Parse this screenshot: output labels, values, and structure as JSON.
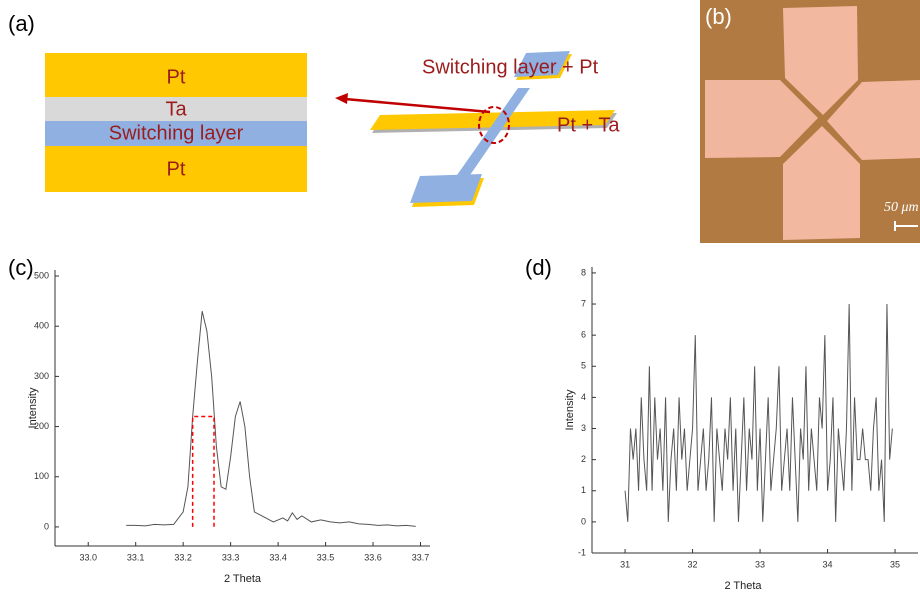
{
  "panel_labels": [
    "(a)",
    "(b)",
    "(c)",
    "(d)"
  ],
  "stack": {
    "layers": [
      "Pt",
      "Ta",
      "Switching layer",
      "Pt"
    ]
  },
  "device": {
    "labels": [
      "Switching layer + Pt",
      "Pt + Ta"
    ]
  },
  "micrograph": {
    "scale_label": "50 μm"
  },
  "chart_data": [
    {
      "type": "line",
      "xlabel": "2 Theta",
      "ylabel": "Intensity",
      "color": "#555555",
      "x": [
        33.08,
        33.1,
        33.12,
        33.14,
        33.16,
        33.18,
        33.2,
        33.21,
        33.22,
        33.23,
        33.24,
        33.25,
        33.26,
        33.27,
        33.28,
        33.29,
        33.3,
        33.31,
        33.32,
        33.33,
        33.34,
        33.35,
        33.37,
        33.39,
        33.41,
        33.42,
        33.43,
        33.44,
        33.45,
        33.47,
        33.49,
        33.51,
        33.53,
        33.55,
        33.57,
        33.59,
        33.61,
        33.63,
        33.65,
        33.67,
        33.69
      ],
      "values": [
        3,
        3,
        2,
        5,
        4,
        5,
        30,
        80,
        220,
        330,
        430,
        390,
        300,
        160,
        80,
        75,
        140,
        220,
        250,
        200,
        100,
        30,
        20,
        10,
        18,
        12,
        28,
        15,
        22,
        10,
        14,
        10,
        8,
        10,
        6,
        5,
        3,
        4,
        2,
        3,
        1
      ],
      "highlight": {
        "x": [
          33.22,
          33.265
        ],
        "top": 220,
        "color": "#ff0000"
      },
      "xlim": [
        32.93,
        33.72
      ],
      "ylim": [
        -38,
        512
      ],
      "xticks": [
        {
          "value": 33,
          "label": "33.0"
        },
        33.1,
        33.2,
        33.3,
        33.4,
        33.5,
        33.6,
        33.7
      ],
      "yticks": [
        0,
        100,
        200,
        300,
        400,
        500
      ]
    },
    {
      "type": "line",
      "xlabel": "2 Theta",
      "ylabel": "Intensity",
      "color": "#555555",
      "x": [
        31,
        31.04,
        31.08,
        31.12,
        31.16,
        31.2,
        31.24,
        31.28,
        31.32,
        31.36,
        31.4,
        31.44,
        31.48,
        31.52,
        31.56,
        31.6,
        31.64,
        31.68,
        31.72,
        31.76,
        31.8,
        31.84,
        31.88,
        31.92,
        31.96,
        32,
        32.04,
        32.08,
        32.12,
        32.16,
        32.2,
        32.24,
        32.28,
        32.32,
        32.36,
        32.4,
        32.44,
        32.48,
        32.52,
        32.56,
        32.6,
        32.64,
        32.68,
        32.72,
        32.76,
        32.8,
        32.84,
        32.88,
        32.92,
        32.96,
        33,
        33.04,
        33.08,
        33.12,
        33.16,
        33.2,
        33.24,
        33.28,
        33.32,
        33.36,
        33.4,
        33.44,
        33.48,
        33.52,
        33.56,
        33.6,
        33.64,
        33.68,
        33.72,
        33.76,
        33.8,
        33.84,
        33.88,
        33.92,
        33.96,
        34,
        34.04,
        34.08,
        34.12,
        34.16,
        34.2,
        34.24,
        34.28,
        34.32,
        34.36,
        34.4,
        34.44,
        34.48,
        34.52,
        34.56,
        34.6,
        34.64,
        34.68,
        34.72,
        34.76,
        34.8,
        34.84,
        34.88,
        34.92,
        34.96
      ],
      "values": [
        1,
        0,
        3,
        2,
        3,
        1,
        4,
        2,
        1,
        5,
        1,
        4,
        2,
        3,
        1,
        4,
        0,
        2,
        3,
        1,
        4,
        2,
        3,
        1,
        2,
        3,
        6,
        1,
        2,
        3,
        1,
        2,
        4,
        0,
        3,
        2,
        1,
        3,
        2,
        4,
        1,
        3,
        0,
        2,
        4,
        1,
        3,
        2,
        5,
        1,
        3,
        0,
        2,
        4,
        1,
        2,
        3,
        5,
        1,
        2,
        3,
        1,
        4,
        2,
        0,
        3,
        2,
        5,
        1,
        3,
        2,
        1,
        4,
        3,
        6,
        1,
        2,
        4,
        0,
        3,
        2,
        1,
        3,
        7,
        1,
        4,
        2,
        2,
        3,
        2,
        2,
        1,
        3,
        4,
        1,
        2,
        0,
        7,
        2,
        3
      ],
      "xlim": [
        30.51,
        35.34
      ],
      "ylim": [
        -1,
        8.19
      ],
      "xticks": [
        31,
        32,
        33,
        34,
        35
      ],
      "yticks": [
        -1,
        0,
        1,
        2,
        3,
        4,
        5,
        6,
        7,
        8
      ]
    }
  ]
}
